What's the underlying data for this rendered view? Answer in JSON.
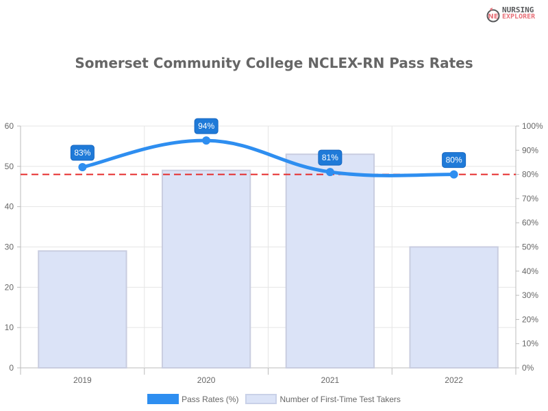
{
  "logo": {
    "line1": "NURSING",
    "line2": "EXPLORER"
  },
  "title": "Somerset Community College NCLEX-RN Pass Rates",
  "legend": [
    {
      "label": "Pass Rates (%)",
      "color": "#2e8ef0"
    },
    {
      "label": "Number of First-Time Test Takers",
      "color": "#dbe3f7",
      "border": "#c9d1e8"
    }
  ],
  "colors": {
    "line": "#2e8ef0",
    "bar_fill": "#dbe3f7",
    "bar_border": "#c9cde0",
    "reference_line": "#e52b2b",
    "label_bg": "#1f7ad8"
  },
  "chart_data": {
    "type": "bar+line",
    "title": "Somerset Community College NCLEX-RN Pass Rates",
    "categories": [
      "2019",
      "2020",
      "2021",
      "2022"
    ],
    "series": [
      {
        "name": "Number of First-Time Test Takers",
        "type": "bar",
        "axis": "left",
        "values": [
          29,
          49,
          53,
          30
        ]
      },
      {
        "name": "Pass Rates (%)",
        "type": "line",
        "axis": "right",
        "values": [
          83,
          94,
          81,
          80
        ],
        "labels": [
          "83%",
          "94%",
          "81%",
          "80%"
        ]
      }
    ],
    "reference_line": {
      "axis": "right",
      "value": 80,
      "style": "dashed",
      "color": "#e52b2b"
    },
    "y_left": {
      "min": 0,
      "max": 60,
      "ticks": [
        "0",
        "10",
        "20",
        "30",
        "40",
        "50",
        "60"
      ]
    },
    "y_right": {
      "min": 0,
      "max": 100,
      "ticks": [
        "0%",
        "10%",
        "20%",
        "30%",
        "40%",
        "50%",
        "60%",
        "70%",
        "80%",
        "90%",
        "100%"
      ]
    },
    "xlabel": "",
    "ylabel": "",
    "grid": true,
    "legend_position": "bottom"
  }
}
